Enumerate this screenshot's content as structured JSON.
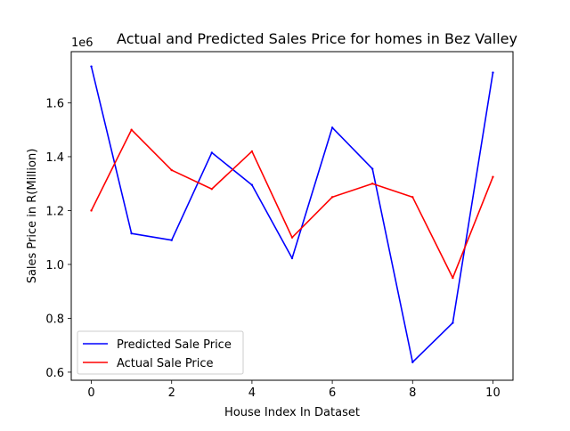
{
  "chart_data": {
    "type": "line",
    "title": "Actual and Predicted Sales Price for homes in Bez Valley",
    "xlabel": "House Index In Dataset",
    "ylabel": "Sales Price in R(Million)",
    "y_offset_label": "1e6",
    "xlim": [
      -0.5,
      10.5
    ],
    "ylim": [
      570000,
      1790000
    ],
    "x_ticks": [
      0,
      2,
      4,
      6,
      8,
      10
    ],
    "x_tick_labels": [
      "0",
      "2",
      "4",
      "6",
      "8",
      "10"
    ],
    "y_ticks": [
      600000,
      800000,
      1000000,
      1200000,
      1400000,
      1600000
    ],
    "y_tick_labels": [
      "0.6",
      "0.8",
      "1.0",
      "1.2",
      "1.4",
      "1.6"
    ],
    "grid": false,
    "legend_position": "lower-left",
    "x": [
      0,
      1,
      2,
      3,
      4,
      5,
      6,
      7,
      8,
      9,
      10
    ],
    "series": [
      {
        "name": "Predicted Sale Price",
        "color": "#0000ff",
        "values": [
          1735000,
          1115000,
          1090000,
          1415000,
          1295000,
          1023000,
          1508000,
          1355000,
          637000,
          783000,
          1712000
        ]
      },
      {
        "name": "Actual Sale Price",
        "color": "#ff0000",
        "values": [
          1200000,
          1500000,
          1350000,
          1280000,
          1420000,
          1100000,
          1250000,
          1300000,
          1250000,
          950000,
          1325000
        ]
      }
    ]
  }
}
